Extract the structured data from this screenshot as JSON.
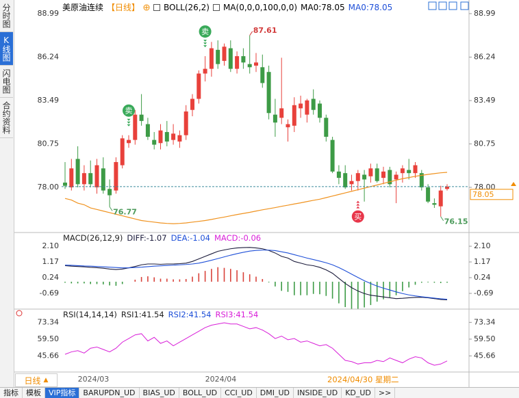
{
  "sidebar": {
    "tabs": [
      "分时图",
      "K线图",
      "闪电图",
      "合约资料"
    ],
    "active": 1
  },
  "header": {
    "symbol": "美原油连续",
    "period": "【日线】",
    "boll": "BOLL(26,2)",
    "ma": "MA(0,0,0,100,0,0)",
    "ma0_a": "MA0:78.05",
    "ma0_b": "MA0:78.05"
  },
  "chart_data": [
    {
      "type": "candlestick",
      "categories": [
        null,
        null,
        "2024/03",
        null,
        null,
        null,
        null,
        null,
        null,
        null,
        null,
        null,
        null,
        null,
        null,
        null,
        null,
        null,
        null,
        null,
        null,
        null,
        "2024/04",
        null,
        null,
        null,
        null,
        null,
        null,
        null,
        null,
        null,
        null,
        null,
        null,
        null,
        null,
        null,
        null,
        null,
        null,
        null,
        null,
        null,
        null,
        null,
        null,
        null,
        null,
        null,
        null,
        null,
        null,
        null,
        null,
        null,
        null,
        null,
        null,
        null,
        null
      ],
      "open": [
        78.3,
        78.0,
        79.8,
        78.2,
        78.9,
        78.0,
        79.2,
        77.9,
        77.8,
        79.4,
        80.8,
        81.0,
        82.6,
        82.0,
        81.0,
        80.8,
        81.5,
        81.0,
        80.9,
        81.3,
        82.9,
        83.6,
        85.2,
        85.5,
        86.7,
        86.0,
        86.8,
        85.5,
        86.3,
        85.8,
        85.7,
        85.6,
        85.3,
        82.6,
        82.4,
        81.8,
        81.9,
        83.0,
        82.6,
        83.6,
        83.3,
        82.4,
        81.0,
        79.0,
        78.9,
        78.2,
        78.4,
        78.8,
        78.7,
        79.2,
        78.6,
        79.1,
        78.5,
        78.9,
        79.1,
        78.9,
        78.9,
        78.0,
        77.0,
        76.8,
        77.9
      ],
      "high": [
        79.6,
        79.8,
        80.6,
        79.4,
        79.7,
        79.8,
        79.9,
        78.5,
        79.9,
        81.3,
        81.3,
        82.9,
        83.9,
        82.4,
        81.5,
        82.0,
        82.2,
        82.0,
        81.6,
        83.2,
        83.9,
        85.4,
        86.3,
        87.2,
        87.3,
        87.1,
        87.3,
        86.6,
        86.8,
        87.61,
        86.5,
        86.4,
        85.7,
        83.6,
        86.2,
        82.3,
        83.7,
        83.8,
        83.6,
        84.2,
        83.5,
        82.6,
        81.2,
        79.4,
        79.4,
        78.8,
        79.1,
        79.1,
        79.5,
        79.5,
        79.3,
        79.3,
        79.0,
        79.4,
        79.8,
        79.6,
        79.1,
        78.2,
        77.3,
        78.1,
        78.2
      ],
      "low": [
        77.9,
        77.8,
        78.0,
        77.8,
        78.0,
        77.6,
        77.6,
        76.77,
        77.6,
        79.2,
        80.5,
        80.7,
        81.9,
        81.0,
        80.4,
        80.4,
        80.6,
        80.7,
        80.5,
        81.0,
        82.5,
        83.3,
        84.7,
        85.0,
        85.5,
        85.7,
        85.3,
        85.2,
        85.5,
        85.2,
        85.3,
        84.3,
        82.3,
        81.2,
        82.0,
        80.9,
        81.5,
        82.4,
        82.1,
        82.6,
        82.1,
        80.9,
        78.9,
        78.2,
        77.9,
        77.8,
        77.8,
        77.1,
        78.3,
        78.3,
        78.2,
        78.0,
        77.0,
        78.3,
        78.5,
        78.6,
        77.8,
        77.0,
        76.7,
        76.15,
        77.8
      ],
      "close": [
        78.1,
        79.2,
        78.2,
        78.9,
        78.2,
        79.4,
        77.8,
        77.5,
        79.6,
        81.1,
        81.0,
        82.6,
        82.2,
        81.2,
        80.7,
        81.6,
        80.9,
        81.4,
        81.3,
        82.8,
        83.6,
        85.2,
        85.5,
        86.8,
        85.8,
        86.9,
        85.5,
        86.3,
        85.9,
        85.6,
        85.9,
        84.6,
        82.7,
        82.1,
        83.0,
        82.0,
        83.2,
        83.3,
        83.5,
        82.9,
        82.4,
        81.2,
        79.0,
        78.6,
        78.0,
        78.4,
        78.9,
        78.5,
        79.2,
        78.4,
        79.0,
        78.2,
        78.8,
        79.2,
        78.9,
        79.4,
        78.0,
        77.1,
        76.9,
        77.8,
        78.05
      ],
      "up_color": "#e8413b",
      "down_color": "#3d9b46",
      "ma": {
        "color": "#f0921e",
        "values": [
          77.3,
          77.2,
          77.0,
          76.9,
          76.7,
          76.6,
          76.5,
          76.4,
          76.3,
          76.2,
          76.1,
          76.0,
          75.9,
          75.85,
          75.8,
          75.75,
          75.72,
          75.7,
          75.72,
          75.75,
          75.8,
          75.85,
          75.9,
          75.97,
          76.05,
          76.12,
          76.2,
          76.28,
          76.35,
          76.42,
          76.5,
          76.58,
          76.65,
          76.72,
          76.8,
          76.87,
          76.95,
          77.02,
          77.1,
          77.18,
          77.25,
          77.35,
          77.45,
          77.55,
          77.65,
          77.75,
          77.85,
          77.95,
          78.05,
          78.15,
          78.25,
          78.35,
          78.45,
          78.55,
          78.62,
          78.7,
          78.76,
          78.82,
          78.87,
          78.92,
          78.95
        ]
      },
      "ylim": [
        75.23,
        89.42
      ],
      "yticks": [
        88.99,
        86.24,
        83.49,
        80.75,
        {
          "value": 78,
          "label": "78.00"
        }
      ],
      "annotate_high": [
        29
      ],
      "annotate_low": [
        7,
        59
      ],
      "high_label_color": "#d23c3c",
      "low_label_color": "#4b9a5a",
      "last_price_color": "#f08c00",
      "signals": [
        {
          "index": 10,
          "label": "卖",
          "color": "#3aaa5a",
          "side": "above"
        },
        {
          "index": 22,
          "label": "卖",
          "color": "#3aaa5a",
          "side": "above"
        },
        {
          "index": 46,
          "label": "买",
          "color": "#e8364a",
          "side": "below"
        }
      ]
    },
    {
      "type": "macd",
      "title": "MACD(26,12,9)",
      "series": [
        {
          "name": "DIFF:-1.07",
          "color": "#1a1a3a",
          "values": [
            0.95,
            0.92,
            0.9,
            0.88,
            0.85,
            0.83,
            0.8,
            0.75,
            0.72,
            0.75,
            0.82,
            0.9,
            1.0,
            1.05,
            1.05,
            1.03,
            1.05,
            1.05,
            1.07,
            1.1,
            1.2,
            1.35,
            1.5,
            1.65,
            1.8,
            1.88,
            1.95,
            2.0,
            2.02,
            2.03,
            2.0,
            1.95,
            1.85,
            1.7,
            1.5,
            1.4,
            1.2,
            1.1,
            1.0,
            0.95,
            0.85,
            0.7,
            0.5,
            0.2,
            -0.1,
            -0.35,
            -0.55,
            -0.7,
            -0.8,
            -0.85,
            -0.9,
            -0.95,
            -1.0,
            -0.98,
            -0.95,
            -0.93,
            -0.92,
            -0.95,
            -1.0,
            -1.05,
            -1.07
          ]
        },
        {
          "name": "DEA:-1.04",
          "color": "#1e4fd8",
          "values": [
            0.98,
            0.97,
            0.95,
            0.93,
            0.92,
            0.9,
            0.88,
            0.86,
            0.84,
            0.82,
            0.82,
            0.84,
            0.86,
            0.89,
            0.92,
            0.94,
            0.96,
            0.98,
            1.0,
            1.02,
            1.05,
            1.1,
            1.18,
            1.27,
            1.37,
            1.47,
            1.57,
            1.66,
            1.74,
            1.81,
            1.85,
            1.87,
            1.87,
            1.84,
            1.77,
            1.7,
            1.6,
            1.5,
            1.4,
            1.31,
            1.22,
            1.12,
            1.0,
            0.84,
            0.65,
            0.45,
            0.25,
            0.06,
            -0.11,
            -0.26,
            -0.38,
            -0.49,
            -0.6,
            -0.7,
            -0.78,
            -0.84,
            -0.89,
            -0.93,
            -0.97,
            -1.01,
            -1.04
          ]
        },
        {
          "name": "MACD:-0.06",
          "color": "#d81ed8",
          "histogram": true,
          "up_color": "#d9423a",
          "down_color": "#3d9b46",
          "values": [
            -0.06,
            -0.1,
            -0.1,
            -0.1,
            -0.14,
            -0.14,
            -0.16,
            -0.22,
            -0.24,
            -0.14,
            0.0,
            0.12,
            0.28,
            0.32,
            0.26,
            0.18,
            0.18,
            0.14,
            0.14,
            0.16,
            0.3,
            0.5,
            0.64,
            0.76,
            0.86,
            0.82,
            0.76,
            0.68,
            0.56,
            0.44,
            0.3,
            0.16,
            -0.04,
            -0.28,
            -0.54,
            -0.6,
            -0.8,
            -0.8,
            -0.8,
            -0.72,
            -0.74,
            -0.84,
            -1.0,
            -1.28,
            -1.5,
            -1.6,
            -1.6,
            -1.52,
            -1.38,
            -1.18,
            -1.04,
            -0.92,
            -0.8,
            -0.56,
            -0.34,
            -0.18,
            -0.06,
            -0.04,
            -0.06,
            -0.08,
            -0.06
          ]
        }
      ],
      "ylim": [
        -1.62,
        2.79
      ],
      "yticks": [
        {
          "value": 2.1,
          "label": "2.10"
        },
        1.17,
        0.24,
        -0.69
      ]
    },
    {
      "type": "line",
      "title": "RSI(14,14,14)",
      "series": [
        {
          "name": "RSI1:41.54",
          "color": "#222222"
        },
        {
          "name": "RSI2:41.54",
          "color": "#1e4fd8"
        },
        {
          "name": "RSI3:41.54",
          "color": "#d81ed8",
          "values": [
            47,
            49,
            50,
            48,
            52,
            53,
            51,
            49,
            52,
            57,
            60,
            63,
            64,
            58,
            61,
            56,
            58,
            54,
            57,
            60,
            63,
            66,
            69,
            71,
            72,
            73,
            72,
            72,
            70,
            68,
            69,
            67,
            64,
            60,
            62,
            59,
            60,
            57,
            58,
            56,
            54,
            55,
            52,
            47,
            42,
            41,
            39,
            40,
            40,
            42,
            41,
            44,
            42,
            40,
            43,
            45,
            44,
            40,
            38,
            39,
            41.54
          ]
        }
      ],
      "ylim": [
        32.97,
        82.57
      ],
      "yticks": [
        73.34,
        {
          "value": 59.5,
          "label": "59.50"
        },
        45.66
      ]
    }
  ],
  "x_axis": {
    "period": "日线",
    "cursor_label": "2024/04/30 星期二"
  },
  "bottom_tabs": {
    "items": [
      "指标",
      "模板",
      "VIP指标",
      "BARUPDN_UD",
      "BIAS_UD",
      "BOLL_UD",
      "CCI_UD",
      "DMI_UD",
      "INSIDE_UD",
      "KD_UD",
      ">>"
    ],
    "active": 2
  }
}
